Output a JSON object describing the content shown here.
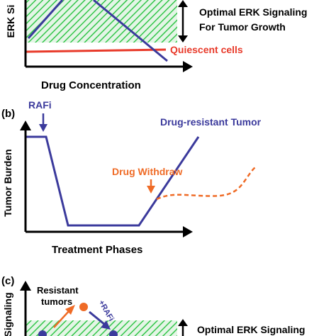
{
  "colors": {
    "green_band": "#33c64a",
    "green_band_bg": "#e4f5e6",
    "tumor_line": "#3b3a9c",
    "quiescent": "#e83a2a",
    "withdraw": "#ef6b26",
    "axis": "#000000"
  },
  "panel_a": {
    "y_axis_label": "ERK Si",
    "band_label_line1": "Optimal ERK Signaling",
    "band_label_line2": "For Tumor Growth",
    "quiescent_label": "Quiescent cells",
    "x_axis_label": "Drug Concentration"
  },
  "panel_b": {
    "panel_letter": "(b)",
    "rafi_label": "RAFi",
    "resistant_label": "Drug-resistant Tumor",
    "withdraw_label": "Drug Withdraw",
    "y_axis_label": "Tumor Burden",
    "x_axis_label": "Treatment Phases"
  },
  "panel_c": {
    "panel_letter": "(c)",
    "y_axis_label": "Signaling",
    "resistant_label_line1": "Resistant",
    "resistant_label_line2": "tumors",
    "rafi_label": "+RAFi",
    "band_label": "Optimal ERK Signaling"
  },
  "icons": {
    "axis_arrows": "arrowhead-icon",
    "band_range_arrow": "double-headed-arrow-icon"
  }
}
